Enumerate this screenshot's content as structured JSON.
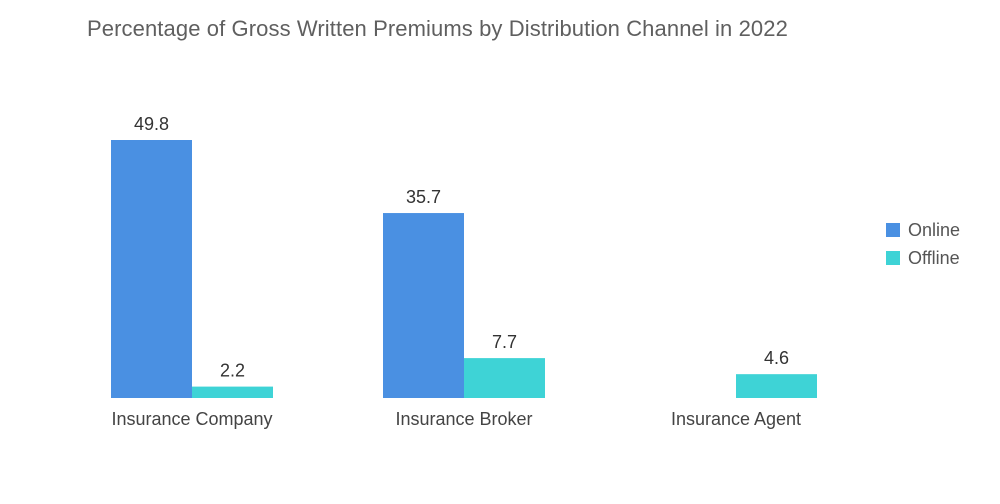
{
  "chart_data": {
    "type": "bar",
    "title": "Percentage of Gross Written Premiums by Distribution Channel in 2022",
    "categories": [
      "Insurance Company",
      "Insurance Broker",
      "Insurance Agent"
    ],
    "series": [
      {
        "name": "Online",
        "color": "#4a90e2",
        "values": [
          49.8,
          35.7,
          null
        ]
      },
      {
        "name": "Offline",
        "color": "#3ed3d6",
        "values": [
          2.2,
          7.7,
          4.6
        ]
      }
    ],
    "value_labels": [
      [
        "49.8",
        "35.7",
        ""
      ],
      [
        "2.2",
        "7.7",
        "4.6"
      ]
    ],
    "xlabel": "",
    "ylabel": "",
    "ylim": [
      0,
      49.8
    ],
    "grid": false,
    "legend_position": "right"
  }
}
